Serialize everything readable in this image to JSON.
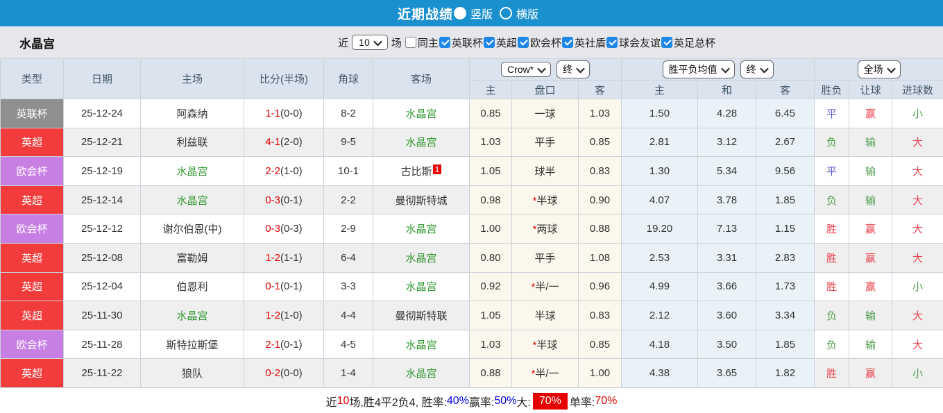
{
  "title_bar": {
    "title": "近期战绩",
    "radios": [
      {
        "label": "竖版",
        "selected": true
      },
      {
        "label": "横版",
        "selected": false
      }
    ]
  },
  "filter_bar": {
    "team": "水晶宫",
    "near_label": "近",
    "count_value": "10",
    "games_label": "场",
    "checkboxes": [
      {
        "label": "同主",
        "checked": false
      },
      {
        "label": "英联杯",
        "checked": true
      },
      {
        "label": "英超",
        "checked": true
      },
      {
        "label": "欧会杯",
        "checked": true
      },
      {
        "label": "英社盾",
        "checked": true
      },
      {
        "label": "球会友谊",
        "checked": true
      },
      {
        "label": "英足总杯",
        "checked": true
      }
    ]
  },
  "table": {
    "headers": {
      "left": [
        "类型",
        "日期",
        "主场",
        "比分(半场)",
        "角球",
        "客场"
      ],
      "dropdowns": {
        "handicap_company": "Crow*",
        "handicap_period": "终",
        "europe_company": "胜平负均值",
        "europe_period": "终",
        "result_scope": "全场"
      },
      "sub": [
        "主",
        "盘口",
        "客",
        "主",
        "和",
        "客",
        "胜负",
        "让球",
        "进球数"
      ]
    },
    "type_colors": {
      "gray": "#8f8f8f",
      "red": "#f23c3c",
      "purple": "#c77fe3"
    },
    "rows": [
      {
        "league": "英联杯",
        "league_color": "gray",
        "date": "25-12-24",
        "home": "阿森纳",
        "home_is_team": false,
        "score_ft": "1-1",
        "score_ht": "(0-0)",
        "corners": "8-2",
        "away": "水晶宫",
        "away_is_team": true,
        "away_rank_badge": "",
        "hc_home": "0.85",
        "hc_line": "一球",
        "hc_away": "1.03",
        "eu_home": "1.50",
        "eu_draw": "4.28",
        "eu_away": "6.45",
        "res_wdl": "平",
        "res_handicap": "赢",
        "res_goals": "小"
      },
      {
        "league": "英超",
        "league_color": "red",
        "date": "25-12-21",
        "home": "利兹联",
        "home_is_team": false,
        "score_ft": "4-1",
        "score_ht": "(2-0)",
        "corners": "9-5",
        "away": "水晶宫",
        "away_is_team": true,
        "away_rank_badge": "",
        "hc_home": "1.03",
        "hc_line": "平手",
        "hc_away": "0.85",
        "eu_home": "2.81",
        "eu_draw": "3.12",
        "eu_away": "2.67",
        "res_wdl": "负",
        "res_handicap": "输",
        "res_goals": "大"
      },
      {
        "league": "欧会杯",
        "league_color": "purple",
        "date": "25-12-19",
        "home": "水晶宫",
        "home_is_team": true,
        "score_ft": "2-2",
        "score_ht": "(1-0)",
        "corners": "10-1",
        "away": "古比斯",
        "away_is_team": false,
        "away_rank_badge": "1",
        "hc_home": "1.05",
        "hc_line": "球半",
        "hc_away": "0.83",
        "eu_home": "1.30",
        "eu_draw": "5.34",
        "eu_away": "9.56",
        "res_wdl": "平",
        "res_handicap": "输",
        "res_goals": "大"
      },
      {
        "league": "英超",
        "league_color": "red",
        "date": "25-12-14",
        "home": "水晶宫",
        "home_is_team": true,
        "score_ft": "0-3",
        "score_ht": "(0-1)",
        "corners": "2-2",
        "away": "曼彻斯特城",
        "away_is_team": false,
        "away_rank_badge": "",
        "hc_home": "0.98",
        "hc_line": "*半球",
        "hc_away": "0.90",
        "eu_home": "4.07",
        "eu_draw": "3.78",
        "eu_away": "1.85",
        "res_wdl": "负",
        "res_handicap": "输",
        "res_goals": "大"
      },
      {
        "league": "欧会杯",
        "league_color": "purple",
        "date": "25-12-12",
        "home": "谢尔伯恩(中)",
        "home_is_team": false,
        "score_ft": "0-3",
        "score_ht": "(0-3)",
        "corners": "2-9",
        "away": "水晶宫",
        "away_is_team": true,
        "away_rank_badge": "",
        "hc_home": "1.00",
        "hc_line": "*两球",
        "hc_away": "0.88",
        "eu_home": "19.20",
        "eu_draw": "7.13",
        "eu_away": "1.15",
        "res_wdl": "胜",
        "res_handicap": "赢",
        "res_goals": "大"
      },
      {
        "league": "英超",
        "league_color": "red",
        "date": "25-12-08",
        "home": "富勒姆",
        "home_is_team": false,
        "score_ft": "1-2",
        "score_ht": "(1-1)",
        "corners": "6-4",
        "away": "水晶宫",
        "away_is_team": true,
        "away_rank_badge": "",
        "hc_home": "0.80",
        "hc_line": "平手",
        "hc_away": "1.08",
        "eu_home": "2.53",
        "eu_draw": "3.31",
        "eu_away": "2.83",
        "res_wdl": "胜",
        "res_handicap": "赢",
        "res_goals": "大"
      },
      {
        "league": "英超",
        "league_color": "red",
        "date": "25-12-04",
        "home": "伯恩利",
        "home_is_team": false,
        "score_ft": "0-1",
        "score_ht": "(0-1)",
        "corners": "3-3",
        "away": "水晶宫",
        "away_is_team": true,
        "away_rank_badge": "",
        "hc_home": "0.92",
        "hc_line": "*半/一",
        "hc_away": "0.96",
        "eu_home": "4.99",
        "eu_draw": "3.66",
        "eu_away": "1.73",
        "res_wdl": "胜",
        "res_handicap": "赢",
        "res_goals": "小"
      },
      {
        "league": "英超",
        "league_color": "red",
        "date": "25-11-30",
        "home": "水晶宫",
        "home_is_team": true,
        "score_ft": "1-2",
        "score_ht": "(1-0)",
        "corners": "4-4",
        "away": "曼彻斯特联",
        "away_is_team": false,
        "away_rank_badge": "",
        "hc_home": "1.05",
        "hc_line": "半球",
        "hc_away": "0.83",
        "eu_home": "2.12",
        "eu_draw": "3.60",
        "eu_away": "3.34",
        "res_wdl": "负",
        "res_handicap": "输",
        "res_goals": "大"
      },
      {
        "league": "欧会杯",
        "league_color": "purple",
        "date": "25-11-28",
        "home": "斯特拉斯堡",
        "home_is_team": false,
        "score_ft": "2-1",
        "score_ht": "(0-1)",
        "corners": "4-5",
        "away": "水晶宫",
        "away_is_team": true,
        "away_rank_badge": "",
        "hc_home": "1.03",
        "hc_line": "*半球",
        "hc_away": "0.85",
        "eu_home": "4.18",
        "eu_draw": "3.50",
        "eu_away": "1.85",
        "res_wdl": "负",
        "res_handicap": "输",
        "res_goals": "大"
      },
      {
        "league": "英超",
        "league_color": "red",
        "date": "25-11-22",
        "home": "狼队",
        "home_is_team": false,
        "score_ft": "0-2",
        "score_ht": "(0-0)",
        "corners": "1-4",
        "away": "水晶宫",
        "away_is_team": true,
        "away_rank_badge": "",
        "hc_home": "0.88",
        "hc_line": "*半/一",
        "hc_away": "1.00",
        "eu_home": "4.38",
        "eu_draw": "3.65",
        "eu_away": "1.82",
        "res_wdl": "胜",
        "res_handicap": "赢",
        "res_goals": "小"
      }
    ]
  },
  "summary": {
    "segments": [
      {
        "text": "近"
      },
      {
        "text": "10",
        "style": "red"
      },
      {
        "text": "场,胜4平2负4, 胜率:"
      },
      {
        "text": "40%",
        "style": "blue"
      },
      {
        "text": " 赢率:"
      },
      {
        "text": "50%",
        "style": "blue"
      },
      {
        "text": " 大:"
      },
      {
        "text": "70%",
        "style": "badge"
      },
      {
        "text": " 单率:"
      },
      {
        "text": "70%",
        "style": "red"
      }
    ]
  },
  "colors": {
    "top_bar": "#1b90ce",
    "header_bg": "#dbe3ee",
    "win_red": "#e8434e",
    "lose_green": "#4f9e4f",
    "draw_blue": "#5b5bd6",
    "team_green": "#339933",
    "score_red": "#e60000",
    "handicap_col_bg": "#fbf7ec",
    "odds_col_bg": "#e9f2f8",
    "league_gray": "#8f8f8f",
    "league_red": "#f23c3c",
    "league_purple": "#c77fe3"
  }
}
